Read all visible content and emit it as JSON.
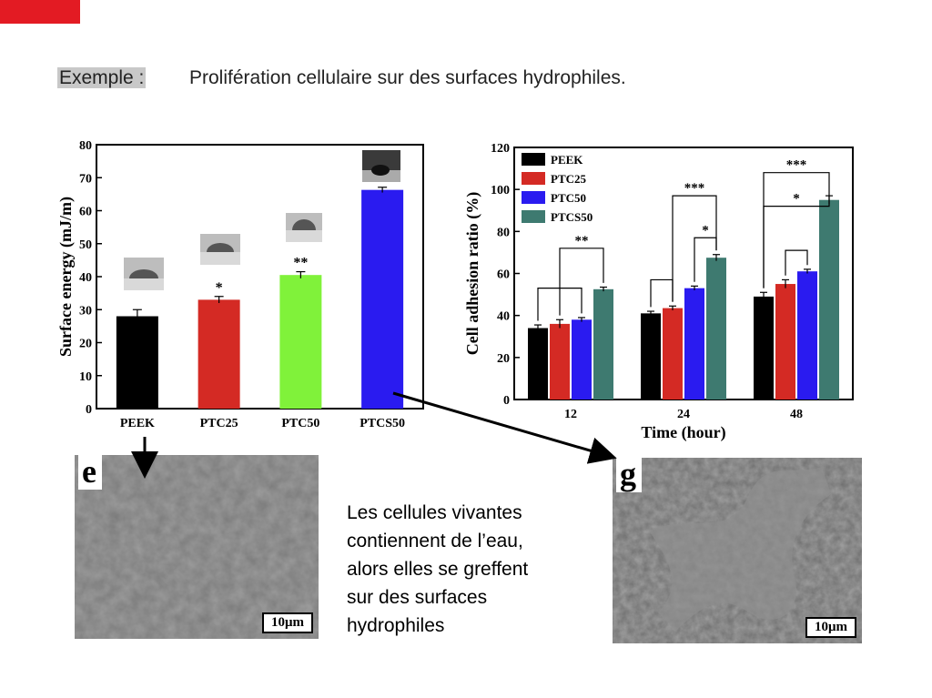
{
  "slide": {
    "title_label": "Exemple :",
    "title_text": "Prolifération cellulaire sur des surfaces hydrophiles.",
    "body_lines": [
      "Les cellules vivantes",
      "contiennent de l’eau,",
      "alors elles se greffent",
      "sur des surfaces",
      "hydrophiles"
    ],
    "accent_color": "#e31b23"
  },
  "sem_images": [
    {
      "letter": "e",
      "scale": "10μm"
    },
    {
      "letter": "g",
      "scale": "10μm"
    }
  ],
  "chart_data": [
    {
      "type": "bar",
      "ylabel": "Surface energy (mJ/m)",
      "categories": [
        "PEEK",
        "PTC25",
        "PTC50",
        "PTCS50"
      ],
      "values": [
        28,
        33,
        40.5,
        66.3
      ],
      "errors": [
        2,
        1,
        1,
        0.8
      ],
      "colors": [
        "#000000",
        "#d42a24",
        "#80f23a",
        "#2a1bf0"
      ],
      "annotations": [
        "",
        "*",
        "**",
        ""
      ],
      "ylim": [
        0,
        80
      ],
      "yticks": [
        0,
        10,
        20,
        30,
        40,
        50,
        60,
        70,
        80
      ]
    },
    {
      "type": "bar",
      "xlabel": "Time (hour)",
      "ylabel": "Cell adhesion ratio (%)",
      "categories": [
        "12",
        "24",
        "48"
      ],
      "series": [
        {
          "name": "PEEK",
          "color": "#000000",
          "values": [
            34,
            41,
            49
          ],
          "errors": [
            1.5,
            1,
            2
          ]
        },
        {
          "name": "PTC25",
          "color": "#d42a24",
          "values": [
            36,
            43.5,
            55
          ],
          "errors": [
            2,
            1,
            2
          ]
        },
        {
          "name": "PTC50",
          "color": "#2a1bf0",
          "values": [
            38,
            53,
            61
          ],
          "errors": [
            1,
            1,
            1
          ]
        },
        {
          "name": "PTCS50",
          "color": "#3e7a70",
          "values": [
            52.5,
            67.5,
            95
          ],
          "errors": [
            1,
            1.5,
            2
          ]
        }
      ],
      "significance": [
        "**",
        "*",
        "***",
        "*",
        "***"
      ],
      "ylim": [
        0,
        120
      ],
      "yticks": [
        0,
        20,
        40,
        60,
        80,
        100,
        120
      ]
    }
  ]
}
